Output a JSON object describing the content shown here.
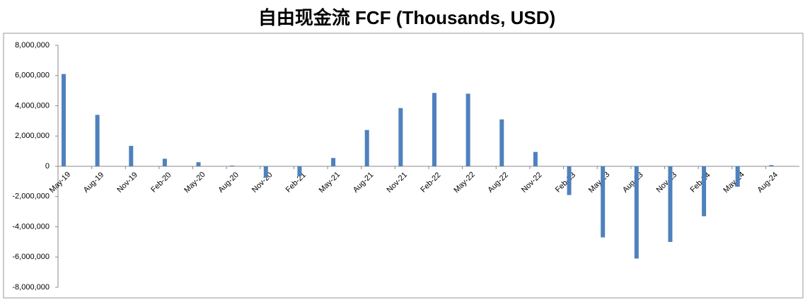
{
  "chart_data": {
    "type": "bar",
    "title": "自由现金流 FCF (Thousands, USD)",
    "categories": [
      "May-19",
      "Aug-19",
      "Nov-19",
      "Feb-20",
      "May-20",
      "Aug-20",
      "Nov-20",
      "Feb-21",
      "May-21",
      "Aug-21",
      "Nov-21",
      "Feb-22",
      "May-22",
      "Aug-22",
      "Nov-22",
      "Feb-23",
      "May-23",
      "Aug-23",
      "Nov-23",
      "Feb-24",
      "May-24",
      "Aug-24"
    ],
    "values": [
      6100000,
      3400000,
      1350000,
      500000,
      270000,
      50000,
      -750000,
      -650000,
      550000,
      2400000,
      3850000,
      4850000,
      4800000,
      3100000,
      950000,
      -1900000,
      -4700000,
      -6100000,
      -5000000,
      -3300000,
      -1350000,
      80000
    ],
    "color": "#4f81bd",
    "ylim": [
      -8000000,
      8000000
    ],
    "yticks": [
      {
        "value": -8000000,
        "label": "-8,000,000"
      },
      {
        "value": -6000000,
        "label": "-6,000,000"
      },
      {
        "value": -4000000,
        "label": "-4,000,000"
      },
      {
        "value": -2000000,
        "label": "-2,000,000"
      },
      0,
      {
        "value": 2000000,
        "label": "2,000,000"
      },
      {
        "value": 4000000,
        "label": "4,000,000"
      },
      {
        "value": 6000000,
        "label": "6,000,000"
      },
      {
        "value": 8000000,
        "label": "8,000,000"
      }
    ]
  }
}
